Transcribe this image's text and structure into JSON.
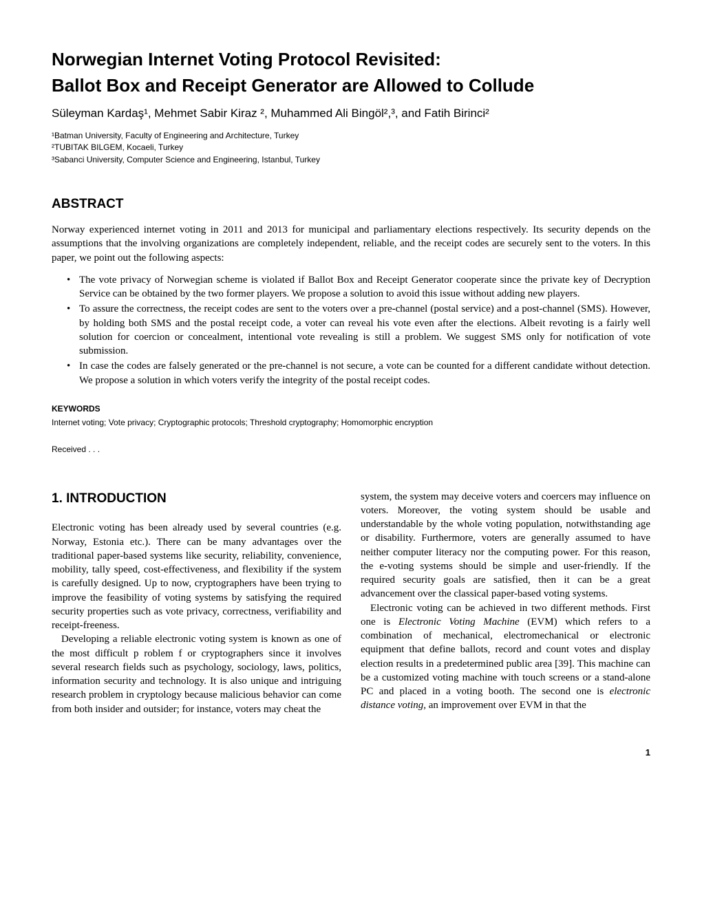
{
  "title_line1": "Norwegian Internet Voting Protocol Revisited:",
  "title_line2": "Ballot Box and Receipt Generator are Allowed to Collude",
  "authors": "Süleyman Kardaş¹, Mehmet Sabir Kiraz ², Muhammed Ali Bingöl²,³, and Fatih Birinci²",
  "affiliations": [
    "¹Batman University, Faculty of Engineering and Architecture, Turkey",
    "²TUBITAK BILGEM, Kocaeli, Turkey",
    "³Sabanci University, Computer Science and Engineering, Istanbul, Turkey"
  ],
  "abstract_label": "ABSTRACT",
  "abstract_intro": "Norway experienced internet voting in 2011 and 2013 for municipal and parliamentary elections respectively. Its security depends on the assumptions that the involving organizations are completely independent, reliable, and the receipt codes are securely sent to the voters. In this paper, we point out the following aspects:",
  "bullets": [
    "The vote privacy of Norwegian scheme is violated if Ballot Box and Receipt Generator cooperate since the private key of Decryption Service can be obtained by the two former players. We propose a solution to avoid this issue without adding new players.",
    "To assure the correctness, the receipt codes are sent to the voters over a pre-channel (postal service) and a post-channel (SMS). However, by holding both SMS and the postal receipt code, a voter can reveal his vote even after the elections. Albeit revoting is a fairly well solution for coercion or concealment, intentional vote revealing is still a problem. We suggest SMS only for notification of vote submission.",
    "In case the codes are falsely generated or the pre-channel is not secure, a vote can be counted for a different candidate without detection. We propose a solution in which voters verify the integrity of the postal receipt codes."
  ],
  "keywords_label": "KEYWORDS",
  "keywords_text": "Internet voting; Vote privacy; Cryptographic protocols; Threshold cryptography; Homomorphic encryption",
  "received": "Received . . .",
  "intro_label": "1. INTRODUCTION",
  "left_p1": "Electronic voting has been already used by several countries (e.g. Norway, Estonia etc.). There can be many advantages over the traditional paper-based systems like security, reliability, convenience, mobility, tally speed, cost-effectiveness, and flexibility if the system is carefully designed. Up to now, cryptographers have been trying to improve the feasibility of voting systems by satisfying the required security properties such as vote privacy, correctness, verifiability and receipt-freeness.",
  "left_p2": "Developing a reliable electronic voting system is known as one of the most difficult p roblem f or cryptographers since it involves several research fields such as psychology, sociology, laws, politics, information security and technology. It is also unique and intriguing research problem in cryptology because malicious behavior can come from both insider and outsider; for instance, voters may cheat the",
  "right_p1": "system, the system may deceive voters and coercers may influence on voters. Moreover, the voting system should be usable and understandable by the whole voting population, notwithstanding age or disability. Furthermore, voters are generally assumed to have neither computer literacy nor the computing power. For this reason, the e-voting systems should be simple and user-friendly. If the required security goals are satisfied, then it can be a great advancement over the classical paper-based voting systems.",
  "right_p2_a": "Electronic voting can be achieved in two different methods. First one is ",
  "right_p2_em1": "Electronic Voting Machine",
  "right_p2_b": " (EVM) which refers to a combination of mechanical, electromechanical or electronic equipment that define ballots, record and count votes and display election results in a predetermined public area [39]. This machine can be a customized voting machine with touch screens or a stand-alone PC and placed in a voting booth. The second one is ",
  "right_p2_em2": "electronic distance voting",
  "right_p2_c": ", an improvement over EVM in that the",
  "page_number": "1"
}
